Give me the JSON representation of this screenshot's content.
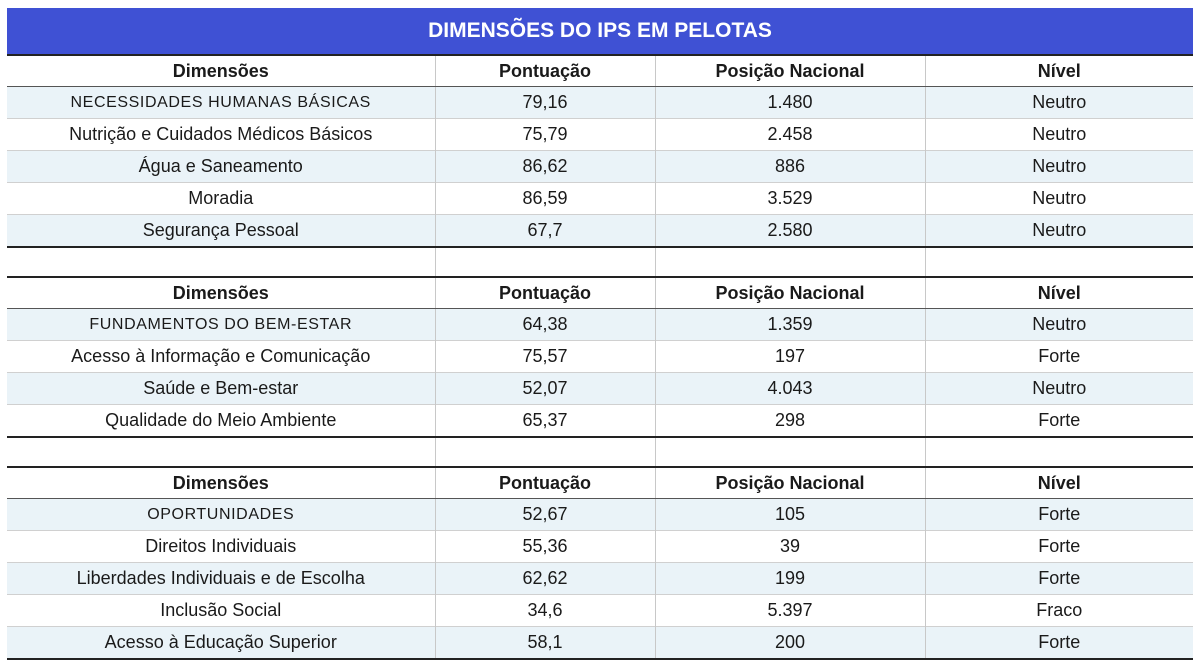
{
  "title": "DIMENSÕES DO IPS EM PELOTAS",
  "headers": [
    "Dimensões",
    "Pontuação",
    "Posição Nacional",
    "Nível"
  ],
  "sections": [
    {
      "rows": [
        {
          "dim": "NECESSIDADES HUMANAS BÁSICAS",
          "score": "79,16",
          "pos": "1.480",
          "level": "Neutro"
        },
        {
          "dim": "Nutrição e Cuidados Médicos Básicos",
          "score": "75,79",
          "pos": "2.458",
          "level": "Neutro"
        },
        {
          "dim": "Água e Saneamento",
          "score": "86,62",
          "pos": "886",
          "level": "Neutro"
        },
        {
          "dim": "Moradia",
          "score": "86,59",
          "pos": "3.529",
          "level": "Neutro"
        },
        {
          "dim": "Segurança Pessoal",
          "score": "67,7",
          "pos": "2.580",
          "level": "Neutro"
        }
      ]
    },
    {
      "rows": [
        {
          "dim": "FUNDAMENTOS DO BEM-ESTAR",
          "score": "64,38",
          "pos": "1.359",
          "level": "Neutro"
        },
        {
          "dim": "Acesso à Informação e Comunicação",
          "score": "75,57",
          "pos": "197",
          "level": "Forte"
        },
        {
          "dim": "Saúde e Bem-estar",
          "score": "52,07",
          "pos": "4.043",
          "level": "Neutro"
        },
        {
          "dim": "Qualidade do Meio Ambiente",
          "score": "65,37",
          "pos": "298",
          "level": "Forte"
        }
      ]
    },
    {
      "rows": [
        {
          "dim": "OPORTUNIDADES",
          "score": "52,67",
          "pos": "105",
          "level": "Forte"
        },
        {
          "dim": "Direitos Individuais",
          "score": "55,36",
          "pos": "39",
          "level": "Forte"
        },
        {
          "dim": "Liberdades Individuais e de Escolha",
          "score": "62,62",
          "pos": "199",
          "level": "Forte"
        },
        {
          "dim": "Inclusão Social",
          "score": "34,6",
          "pos": "5.397",
          "level": "Fraco"
        },
        {
          "dim": "Acesso à Educação Superior",
          "score": "58,1",
          "pos": "200",
          "level": "Forte"
        }
      ]
    }
  ],
  "colors": {
    "title_bg": "#3f51d4",
    "row_shade": "#eaf3f8"
  }
}
